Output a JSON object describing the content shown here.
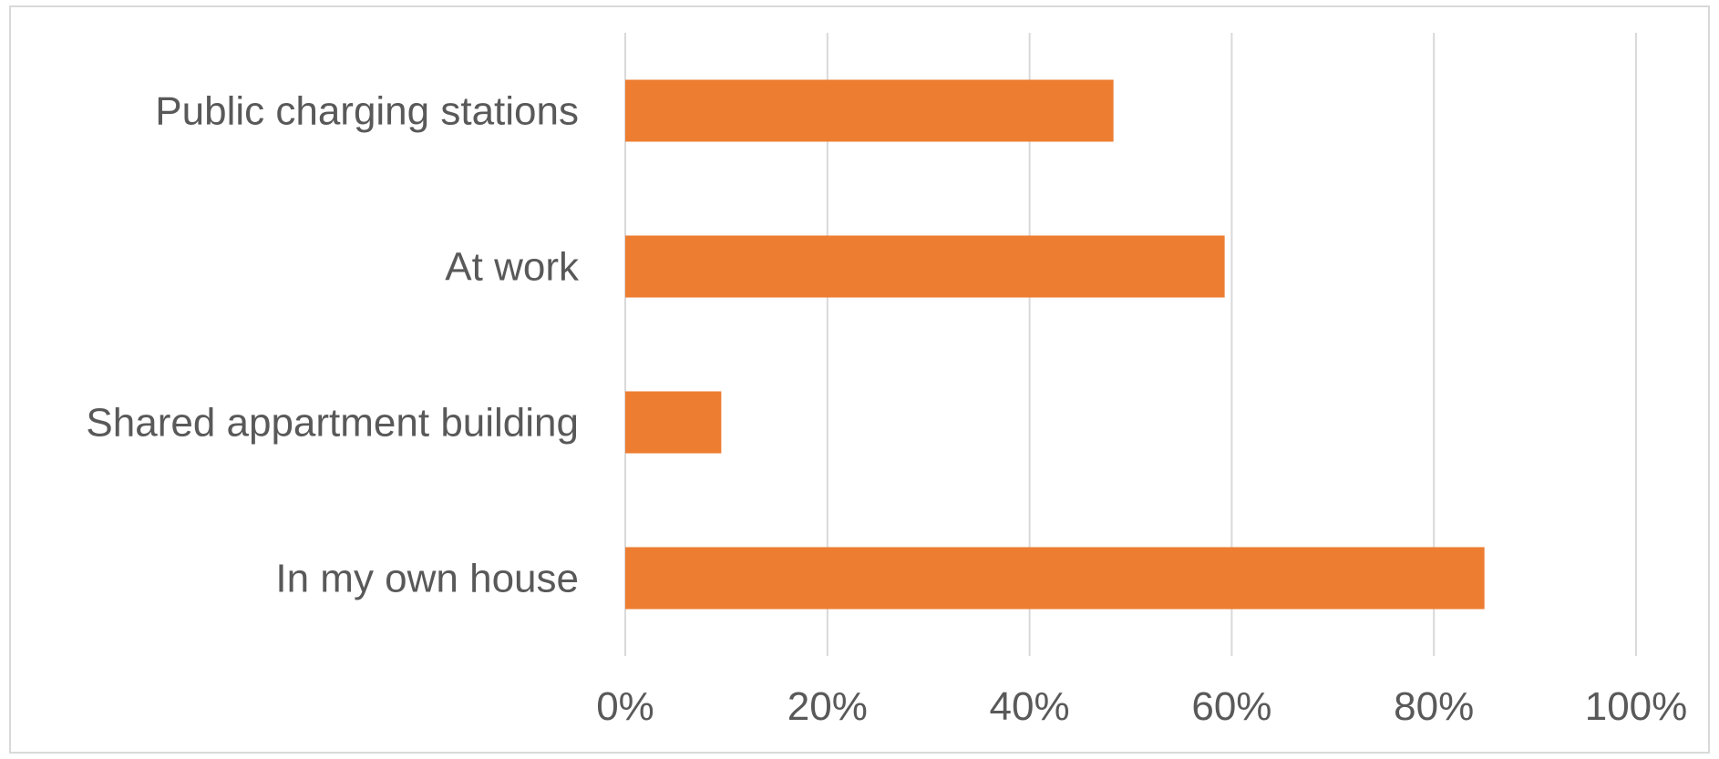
{
  "chart_data": {
    "type": "bar",
    "orientation": "horizontal",
    "title": "",
    "xlabel": "",
    "ylabel": "",
    "categories": [
      "In my own house",
      "Shared appartment building",
      "At work",
      "Public charging stations"
    ],
    "values": [
      85,
      9.5,
      59.3,
      48.3
    ],
    "xlim": [
      0,
      100
    ],
    "x_ticks": [
      "0%",
      "20%",
      "40%",
      "60%",
      "80%",
      "100%"
    ],
    "x_tick_values": [
      0,
      20,
      40,
      60,
      80,
      100
    ],
    "grid": "vertical",
    "legend": "none",
    "colors": {
      "bar": "#ED7D31",
      "grid": "#d9d9d9",
      "text": "#595959"
    }
  }
}
